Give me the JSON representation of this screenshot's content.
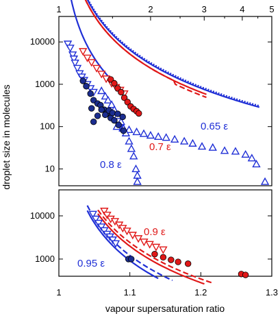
{
  "chart_data": [
    {
      "type": "scatter",
      "panel": "top",
      "xaxis_top": {
        "label": "",
        "scale": "log",
        "range": [
          1,
          5
        ],
        "ticks": [
          1,
          2,
          3,
          4,
          5
        ]
      },
      "yaxis": {
        "label": "droplet size in molecules",
        "scale": "log",
        "range": [
          4,
          40000
        ],
        "ticks": [
          10,
          100,
          1000,
          10000
        ]
      },
      "legend": "none",
      "annotations": [
        {
          "text": "0.65 ε",
          "color": "#1f2fd6"
        },
        {
          "text": "0.7 ε",
          "color": "#e01818"
        },
        {
          "text": "0.8 ε",
          "color": "#1f2fd6"
        }
      ],
      "series": [
        {
          "color": "#1f2fd6",
          "marker": "triangle-up-open",
          "points": [
            [
              1.55,
              100
            ],
            [
              1.62,
              92
            ],
            [
              1.7,
              84
            ],
            [
              1.8,
              75
            ],
            [
              1.9,
              68
            ],
            [
              2.0,
              62
            ],
            [
              2.12,
              58
            ],
            [
              2.25,
              55
            ],
            [
              2.4,
              50
            ],
            [
              2.58,
              45
            ],
            [
              2.75,
              40
            ],
            [
              2.95,
              34
            ],
            [
              3.2,
              32
            ],
            [
              3.5,
              27
            ],
            [
              3.8,
              26
            ],
            [
              4.1,
              22
            ],
            [
              4.3,
              18
            ],
            [
              4.45,
              13
            ],
            [
              4.75,
              5
            ]
          ]
        },
        {
          "color": "#1f2fd6",
          "marker": "triangle-down-open",
          "points": [
            [
              1.07,
              9000
            ],
            [
              1.09,
              7200
            ],
            [
              1.11,
              5000
            ],
            [
              1.12,
              4000
            ],
            [
              1.13,
              3200
            ],
            [
              1.15,
              2400
            ],
            [
              1.17,
              1800
            ],
            [
              1.19,
              1500
            ],
            [
              1.21,
              1250
            ],
            [
              1.24,
              1000
            ],
            [
              1.27,
              800
            ],
            [
              1.3,
              650
            ]
          ]
        },
        {
          "color": "#1f2fd6",
          "marker": "triangle-up-open",
          "points": [
            [
              1.38,
              700
            ],
            [
              1.42,
              520
            ],
            [
              1.45,
              420
            ],
            [
              1.49,
              330
            ],
            [
              1.52,
              250
            ],
            [
              1.56,
              180
            ],
            [
              1.6,
              130
            ],
            [
              1.63,
              90
            ],
            [
              1.66,
              70
            ],
            [
              1.7,
              45
            ],
            [
              1.73,
              30
            ],
            [
              1.76,
              20
            ],
            [
              1.79,
              10
            ],
            [
              1.81,
              7
            ],
            [
              1.81,
              5
            ]
          ]
        },
        {
          "color": "#1f2fd6",
          "marker": "circle-filled-dark",
          "points": [
            [
              1.2,
              1200
            ],
            [
              1.23,
              900
            ],
            [
              1.27,
              600
            ],
            [
              1.3,
              420
            ],
            [
              1.34,
              350
            ],
            [
              1.37,
              320
            ],
            [
              1.41,
              250
            ],
            [
              1.44,
              210
            ],
            [
              1.48,
              160
            ],
            [
              1.52,
              140
            ],
            [
              1.57,
              110
            ],
            [
              1.63,
              80
            ],
            [
              1.3,
              130
            ],
            [
              1.34,
              180
            ],
            [
              1.38,
              250
            ],
            [
              1.42,
              190
            ],
            [
              1.46,
              240
            ],
            [
              1.5,
              210
            ],
            [
              1.56,
              200
            ],
            [
              1.62,
              170
            ],
            [
              1.28,
              270
            ]
          ]
        },
        {
          "color": "#e01818",
          "marker": "triangle-down-open",
          "points": [
            [
              1.2,
              6000
            ],
            [
              1.24,
              4200
            ],
            [
              1.28,
              3300
            ],
            [
              1.33,
              2400
            ],
            [
              1.38,
              1750
            ],
            [
              1.43,
              1350
            ],
            [
              1.49,
              1050
            ],
            [
              1.54,
              850
            ],
            [
              1.59,
              730
            ],
            [
              1.64,
              600
            ]
          ]
        },
        {
          "color": "#e01818",
          "marker": "circle-filled",
          "points": [
            [
              1.48,
              1300
            ],
            [
              1.52,
              1050
            ],
            [
              1.56,
              800
            ],
            [
              1.6,
              650
            ],
            [
              1.64,
              480
            ],
            [
              1.68,
              380
            ],
            [
              1.72,
              300
            ],
            [
              1.76,
              260
            ],
            [
              1.8,
              230
            ],
            [
              1.83,
              205
            ]
          ]
        }
      ],
      "fits": [
        {
          "color": "#e01818",
          "style": "solid"
        },
        {
          "color": "#e01818",
          "style": "dashed"
        },
        {
          "color": "#1f2fd6",
          "style": "solid"
        },
        {
          "color": "#1f2fd6",
          "style": "dotted"
        }
      ]
    },
    {
      "type": "scatter",
      "panel": "bottom",
      "xaxis": {
        "label": "vapour supersaturation ratio",
        "scale": "linear",
        "range": [
          1.0,
          1.3
        ],
        "ticks": [
          1,
          1.1,
          1.2,
          1.3
        ],
        "tick_labels": [
          "1",
          "1.1",
          "1.2",
          "1.3"
        ]
      },
      "yaxis": {
        "label": "droplet size in molecules",
        "scale": "log",
        "range": [
          400,
          40000
        ],
        "ticks": [
          1000,
          10000
        ]
      },
      "legend": "none",
      "annotations": [
        {
          "text": "0.9 ε",
          "color": "#e01818"
        },
        {
          "text": "0.95 ε",
          "color": "#1f2fd6"
        }
      ],
      "series": [
        {
          "color": "#e01818",
          "marker": "triangle-down-open",
          "points": [
            [
              1.064,
              13000
            ],
            [
              1.068,
              10500
            ],
            [
              1.073,
              8500
            ],
            [
              1.079,
              7500
            ],
            [
              1.085,
              6200
            ],
            [
              1.09,
              5200
            ],
            [
              1.096,
              4500
            ],
            [
              1.104,
              3600
            ],
            [
              1.112,
              3000
            ],
            [
              1.12,
              2500
            ],
            [
              1.128,
              2200
            ],
            [
              1.137,
              1900
            ],
            [
              1.147,
              1650
            ]
          ]
        },
        {
          "color": "#e01818",
          "marker": "circle-filled",
          "points": [
            [
              1.135,
              1300
            ],
            [
              1.147,
              1100
            ],
            [
              1.158,
              960
            ],
            [
              1.168,
              860
            ],
            [
              1.182,
              780
            ],
            [
              1.257,
              450
            ],
            [
              1.263,
              430
            ]
          ]
        },
        {
          "color": "#1f2fd6",
          "marker": "triangle-down-open",
          "points": [
            [
              1.048,
              11000
            ],
            [
              1.052,
              8500
            ],
            [
              1.056,
              6800
            ],
            [
              1.06,
              5600
            ],
            [
              1.064,
              4600
            ],
            [
              1.068,
              3800
            ],
            [
              1.072,
              3300
            ],
            [
              1.076,
              2800
            ],
            [
              1.08,
              2300
            ]
          ]
        },
        {
          "color": "#1f2fd6",
          "marker": "circle-filled-dark",
          "points": [
            [
              1.098,
              1000
            ],
            [
              1.102,
              1000
            ]
          ]
        }
      ],
      "fits": [
        {
          "color": "#e01818",
          "style": "solid"
        },
        {
          "color": "#e01818",
          "style": "dashed"
        },
        {
          "color": "#1f2fd6",
          "style": "solid"
        },
        {
          "color": "#1f2fd6",
          "style": "dashed"
        }
      ]
    }
  ]
}
